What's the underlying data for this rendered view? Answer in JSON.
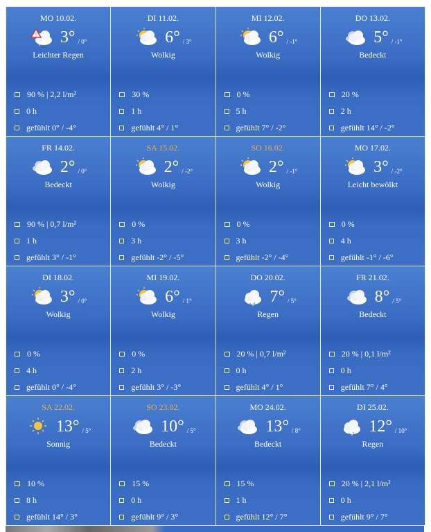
{
  "colors": {
    "weekend": "#e8b04a",
    "text": "#ffffff",
    "background": "#3a6cc4"
  },
  "days": [
    {
      "date": "MO 10.02.",
      "weekend": false,
      "icon": "warning-rain-cloud",
      "temp": "3°",
      "min": "/ 0°",
      "cond": "Leichter Regen",
      "rain": "90 % | 2,2 l/m²",
      "sun": "0 h",
      "felt": "gefühlt 0° / -4°"
    },
    {
      "date": "DI 11.02.",
      "weekend": false,
      "icon": "sun-cloud",
      "temp": "6°",
      "min": "/ 3°",
      "cond": "Wolkig",
      "rain": "30 %",
      "sun": "1 h",
      "felt": "gefühlt 4° / 1°"
    },
    {
      "date": "MI 12.02.",
      "weekend": false,
      "icon": "sun-cloud",
      "temp": "6°",
      "min": "/ -1°",
      "cond": "Wolkig",
      "rain": "0 %",
      "sun": "5 h",
      "felt": "gefühlt 7° / -2°"
    },
    {
      "date": "DO 13.02.",
      "weekend": false,
      "icon": "cloud",
      "temp": "5°",
      "min": "/ -1°",
      "cond": "Bedeckt",
      "rain": "20 %",
      "sun": "2 h",
      "felt": "gefühlt 14° / -2°"
    },
    {
      "date": "FR 14.02.",
      "weekend": false,
      "icon": "cloud",
      "temp": "2°",
      "min": "/ 0°",
      "cond": "Bedeckt",
      "rain": "90 % | 0,7 l/m²",
      "sun": "1 h",
      "felt": "gefühlt 3° / -1°"
    },
    {
      "date": "SA 15.02.",
      "weekend": true,
      "icon": "sun-cloud",
      "temp": "2°",
      "min": "/ -2°",
      "cond": "Wolkig",
      "rain": "0 %",
      "sun": "3 h",
      "felt": "gefühlt -2° / -5°"
    },
    {
      "date": "SO 16.02.",
      "weekend": true,
      "icon": "sun-cloud",
      "temp": "2°",
      "min": "/ -1°",
      "cond": "Wolkig",
      "rain": "0 %",
      "sun": "3 h",
      "felt": "gefühlt -2° / -4°"
    },
    {
      "date": "MO 17.02.",
      "weekend": false,
      "icon": "sun-cloud",
      "temp": "3°",
      "min": "/ -2°",
      "cond": "Leicht bewölkt",
      "rain": "0 %",
      "sun": "4 h",
      "felt": "gefühlt -1° / -6°"
    },
    {
      "date": "DI 18.02.",
      "weekend": false,
      "icon": "sun-cloud",
      "temp": "3°",
      "min": "/ 0°",
      "cond": "Wolkig",
      "rain": "0 %",
      "sun": "4 h",
      "felt": "gefühlt 0° / -4°"
    },
    {
      "date": "MI 19.02.",
      "weekend": false,
      "icon": "sun-cloud",
      "temp": "6°",
      "min": "/ 1°",
      "cond": "Wolkig",
      "rain": "0 %",
      "sun": "2 h",
      "felt": "gefühlt 3° / -3°"
    },
    {
      "date": "DO 20.02.",
      "weekend": false,
      "icon": "rain-cloud",
      "temp": "7°",
      "min": "/ 5°",
      "cond": "Regen",
      "rain": "20 % | 0,7 l/m²",
      "sun": "0 h",
      "felt": "gefühlt 4° / 1°"
    },
    {
      "date": "FR 21.02.",
      "weekend": false,
      "icon": "cloud",
      "temp": "8°",
      "min": "/ 5°",
      "cond": "Bedeckt",
      "rain": "20 % | 0,1 l/m²",
      "sun": "0 h",
      "felt": "gefühlt 7° / 4°"
    },
    {
      "date": "SA 22.02.",
      "weekend": true,
      "icon": "sun",
      "temp": "13°",
      "min": "/ 5°",
      "cond": "Sonnig",
      "rain": "10 %",
      "sun": "8 h",
      "felt": "gefühlt 14° / 3°"
    },
    {
      "date": "SO 23.02.",
      "weekend": true,
      "icon": "cloud",
      "temp": "10°",
      "min": "/ 5°",
      "cond": "Bedeckt",
      "rain": "15 %",
      "sun": "0 h",
      "felt": "gefühlt 9° / 3°"
    },
    {
      "date": "MO 24.02.",
      "weekend": false,
      "icon": "cloud",
      "temp": "13°",
      "min": "/ 8°",
      "cond": "Bedeckt",
      "rain": "15 %",
      "sun": "1 h",
      "felt": "gefühlt 12° / 7°"
    },
    {
      "date": "DI 25.02.",
      "weekend": false,
      "icon": "rain-cloud",
      "temp": "12°",
      "min": "/ 10°",
      "cond": "Regen",
      "rain": "20 % | 2,1 l/m²",
      "sun": "0 h",
      "felt": "gefühlt 9° / 7°"
    }
  ]
}
